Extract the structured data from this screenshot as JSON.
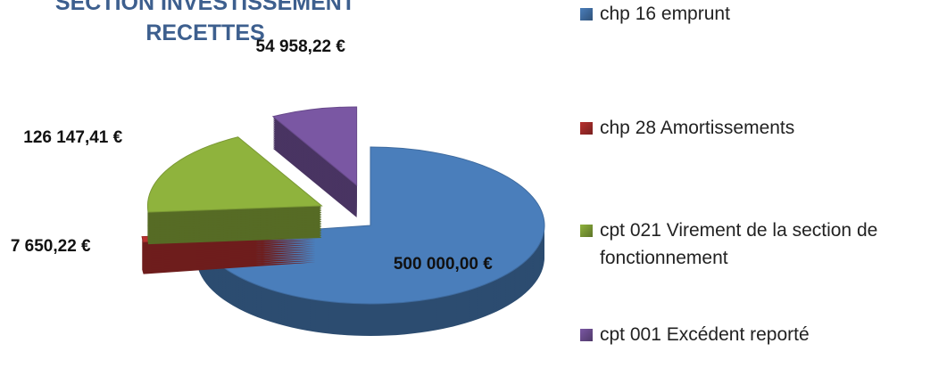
{
  "chart_data": {
    "type": "pie",
    "title": "SECTION INVESTISSEMENT RECETTES",
    "categories": [
      "chp 16 emprunt",
      "chp 28 Amortissements",
      "cpt 021 Virement de la section de fonctionnement",
      "cpt 001 Excédent reporté"
    ],
    "values": [
      500000.0,
      7650.22,
      126147.41,
      54958.22
    ],
    "value_labels": [
      "500 000,00 €",
      "7 650,22 €",
      "126 147,41 €",
      "54 958,22 €"
    ],
    "colors": [
      "#4a7ebb",
      "#b8312f",
      "#8fb33d",
      "#7a57a3"
    ],
    "legend": "right"
  }
}
